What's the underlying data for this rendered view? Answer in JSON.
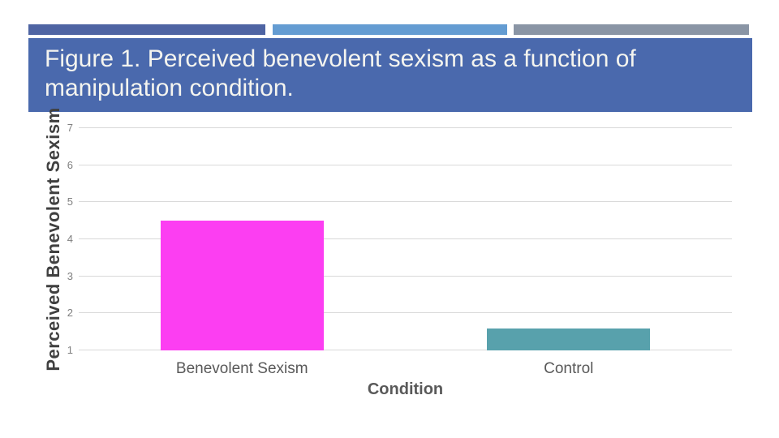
{
  "slide": {
    "title": "Figure 1. Perceived benevolent sexism as a function of manipulation condition."
  },
  "theme": {
    "banner_bg": "#4a69ad",
    "banner_text": "#f4f4ef",
    "deco_colors": [
      "#4e64a3",
      "#649cd2",
      "#8a95a5"
    ],
    "grid_color": "#d9d9d9",
    "tick_color": "#7f7f7f",
    "axis_title_color": "#404040",
    "category_label_color": "#595959"
  },
  "chart_data": {
    "type": "bar",
    "categories": [
      "Benevolent Sexism",
      "Control"
    ],
    "values": [
      4.5,
      1.6
    ],
    "series_colors": [
      "#fc3ef2",
      "#58a1ac"
    ],
    "title": "Figure 1. Perceived benevolent sexism as a function of manipulation condition.",
    "xlabel": "Condition",
    "ylabel": "Perceived Benevolent Sexism",
    "ylim": [
      1,
      7
    ],
    "yticks": [
      1,
      2,
      3,
      4,
      5,
      6,
      7
    ],
    "grid": true,
    "legend": "none"
  }
}
